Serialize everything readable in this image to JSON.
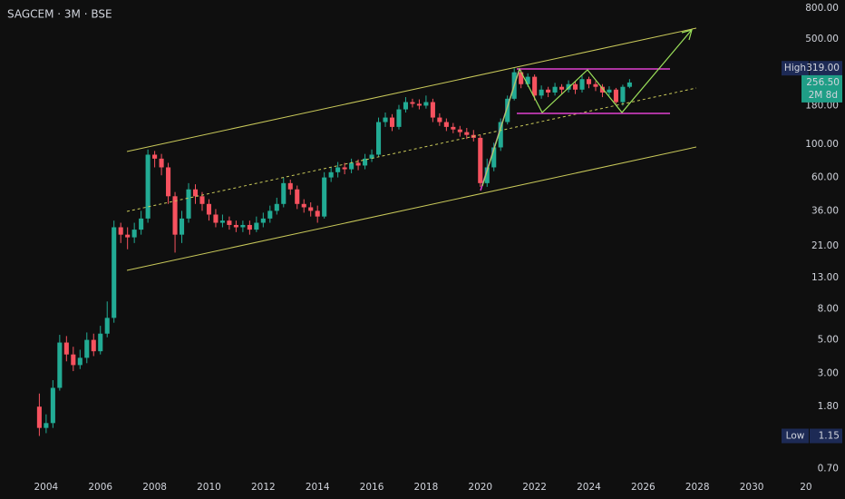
{
  "chart_data": {
    "type": "candlestick",
    "title": "SAGCEM · 3M · BSE",
    "log_scale": true,
    "up_color": "#22ab94",
    "down_color": "#f7525f",
    "xlim": [
      2002.3,
      2031.1
    ],
    "xticks": [
      2004,
      2006,
      2008,
      2010,
      2012,
      2014,
      2016,
      2018,
      2020,
      2022,
      2024,
      2026,
      2028,
      2030,
      {
        "value": 2032,
        "label": "20"
      }
    ],
    "ylim": [
      0.62,
      906
    ],
    "yticks": [
      {
        "value": 800,
        "label": "800.00"
      },
      {
        "value": 500,
        "label": "500.00"
      },
      {
        "value": 180,
        "label": "180.00"
      },
      {
        "value": 100,
        "label": "100.00"
      },
      {
        "value": 60,
        "label": "60.00"
      },
      {
        "value": 36,
        "label": "36.00"
      },
      {
        "value": 21,
        "label": "21.00"
      },
      {
        "value": 13,
        "label": "13.00"
      },
      {
        "value": 8,
        "label": "8.00"
      },
      {
        "value": 5,
        "label": "5.00"
      },
      {
        "value": 3,
        "label": "3.00"
      },
      {
        "value": 1.8,
        "label": "1.80"
      },
      {
        "value": 0.7,
        "label": "0.70"
      }
    ],
    "x": [
      2003.75,
      2004,
      2004.25,
      2004.5,
      2004.75,
      2005,
      2005.25,
      2005.5,
      2005.75,
      2006,
      2006.25,
      2006.5,
      2006.75,
      2007,
      2007.25,
      2007.5,
      2007.75,
      2008,
      2008.25,
      2008.5,
      2008.75,
      2009,
      2009.25,
      2009.5,
      2009.75,
      2010,
      2010.25,
      2010.5,
      2010.75,
      2011,
      2011.25,
      2011.5,
      2011.75,
      2012,
      2012.25,
      2012.5,
      2012.75,
      2013,
      2013.25,
      2013.5,
      2013.75,
      2014,
      2014.25,
      2014.5,
      2014.75,
      2015,
      2015.25,
      2015.5,
      2015.75,
      2016,
      2016.25,
      2016.5,
      2016.75,
      2017,
      2017.25,
      2017.5,
      2017.75,
      2018,
      2018.25,
      2018.5,
      2018.75,
      2019,
      2019.25,
      2019.5,
      2019.75,
      2020,
      2020.25,
      2020.5,
      2020.75,
      2021,
      2021.25,
      2021.5,
      2021.75,
      2022,
      2022.25,
      2022.5,
      2022.75,
      2023,
      2023.25,
      2023.5,
      2023.75,
      2024,
      2024.25,
      2024.5,
      2024.75,
      2025,
      2025.25,
      2025.5
    ],
    "open": [
      1.8,
      1.3,
      1.4,
      2.4,
      4.8,
      4.0,
      3.4,
      3.8,
      5.0,
      4.2,
      5.5,
      7.0,
      28,
      25,
      24,
      27,
      32,
      85,
      80,
      70,
      45,
      25,
      32,
      50,
      45,
      40,
      34,
      30,
      31,
      29,
      28,
      29,
      27,
      30,
      32,
      36,
      40,
      55,
      50,
      40,
      38,
      36,
      33,
      60,
      65,
      70,
      68,
      75,
      72,
      80,
      85,
      140,
      150,
      130,
      170,
      190,
      185,
      180,
      190,
      150,
      140,
      130,
      125,
      120,
      115,
      110,
      55,
      70,
      95,
      140,
      200,
      300,
      250,
      280,
      210,
      230,
      220,
      240,
      230,
      250,
      230,
      270,
      250,
      240,
      220,
      230,
      190,
      240
    ],
    "high": [
      2.2,
      1.6,
      2.7,
      5.4,
      5.3,
      4.5,
      4.3,
      5.6,
      5.5,
      6.2,
      9.0,
      31,
      30,
      28,
      30,
      36,
      92,
      90,
      86,
      75,
      48,
      36,
      55,
      54,
      48,
      43,
      37,
      34,
      33,
      31,
      31,
      31,
      33,
      35,
      39,
      44,
      60,
      58,
      53,
      43,
      41,
      39,
      65,
      70,
      76,
      75,
      80,
      79,
      86,
      92,
      150,
      162,
      158,
      182,
      205,
      200,
      198,
      210,
      200,
      160,
      148,
      138,
      132,
      128,
      124,
      115,
      80,
      102,
      148,
      210,
      319,
      310,
      295,
      290,
      245,
      240,
      255,
      250,
      265,
      260,
      285,
      280,
      262,
      250,
      242,
      236,
      248,
      270
    ],
    "low": [
      1.15,
      1.2,
      1.3,
      2.3,
      3.6,
      3.1,
      3.2,
      3.5,
      3.9,
      4.0,
      5.2,
      6.5,
      22,
      20,
      22,
      25,
      30,
      70,
      62,
      40,
      19,
      22,
      30,
      40,
      36,
      31,
      28,
      28,
      27,
      26,
      26,
      25,
      26,
      28,
      30,
      34,
      38,
      46,
      37,
      35,
      33,
      30,
      32,
      56,
      60,
      63,
      64,
      67,
      68,
      76,
      82,
      130,
      122,
      125,
      162,
      175,
      170,
      172,
      140,
      132,
      122,
      118,
      112,
      108,
      104,
      52,
      52,
      66,
      90,
      135,
      195,
      235,
      240,
      195,
      200,
      205,
      210,
      215,
      220,
      215,
      220,
      235,
      225,
      205,
      210,
      185,
      180,
      235
    ],
    "close": [
      1.3,
      1.4,
      2.4,
      4.8,
      4.0,
      3.4,
      3.8,
      5.0,
      4.2,
      5.5,
      7.0,
      28,
      25,
      24,
      27,
      32,
      85,
      80,
      70,
      45,
      25,
      32,
      50,
      45,
      40,
      34,
      30,
      31,
      29,
      28,
      29,
      27,
      30,
      32,
      36,
      40,
      55,
      50,
      40,
      38,
      36,
      33,
      60,
      65,
      70,
      68,
      75,
      72,
      80,
      85,
      140,
      150,
      130,
      170,
      190,
      185,
      180,
      190,
      150,
      140,
      130,
      125,
      120,
      115,
      110,
      55,
      70,
      95,
      140,
      200,
      300,
      250,
      280,
      210,
      230,
      220,
      240,
      230,
      250,
      230,
      270,
      250,
      240,
      220,
      230,
      190,
      240,
      256.5
    ],
    "markers": [
      {
        "name": "High",
        "value": 319,
        "label": "319.00"
      },
      {
        "name": "Low",
        "value": 1.15,
        "label": "1.15"
      }
    ],
    "last_price": {
      "value": 256.5,
      "label": "256.50",
      "countdown": "2M 8d"
    }
  }
}
